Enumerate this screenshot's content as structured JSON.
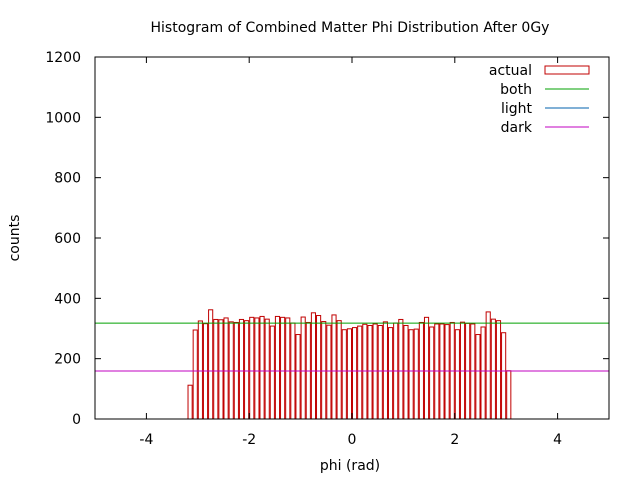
{
  "chart_data": {
    "type": "bar",
    "title": "Histogram of Combined Matter Phi Distribution After 0Gy",
    "xlabel": "phi (rad)",
    "ylabel": "counts",
    "xlim": [
      -5,
      5
    ],
    "ylim": [
      0,
      1200
    ],
    "xticks": [
      -4,
      -2,
      0,
      2,
      4
    ],
    "yticks": [
      0,
      200,
      400,
      600,
      800,
      1000,
      1200
    ],
    "grid": false,
    "legend_position": "top-right",
    "histogram": {
      "name": "actual",
      "color": "#c00000",
      "bin_width": 0.1,
      "bin_start": -3.2,
      "counts": [
        112,
        295,
        325,
        316,
        362,
        330,
        329,
        335,
        322,
        320,
        330,
        326,
        337,
        335,
        340,
        331,
        308,
        340,
        337,
        335,
        318,
        280,
        338,
        320,
        352,
        343,
        323,
        311,
        345,
        326,
        296,
        299,
        303,
        308,
        314,
        310,
        315,
        310,
        322,
        303,
        318,
        330,
        310,
        296,
        298,
        320,
        337,
        305,
        315,
        315,
        313,
        320,
        296,
        321,
        317,
        315,
        280,
        305,
        355,
        331,
        326,
        286,
        160
      ]
    },
    "reference_lines": [
      {
        "name": "both",
        "y": 318,
        "color": "#00a000"
      },
      {
        "name": "light",
        "y": 159,
        "color": "#0060ad"
      },
      {
        "name": "dark",
        "y": 159,
        "color": "#c000c0"
      }
    ]
  }
}
